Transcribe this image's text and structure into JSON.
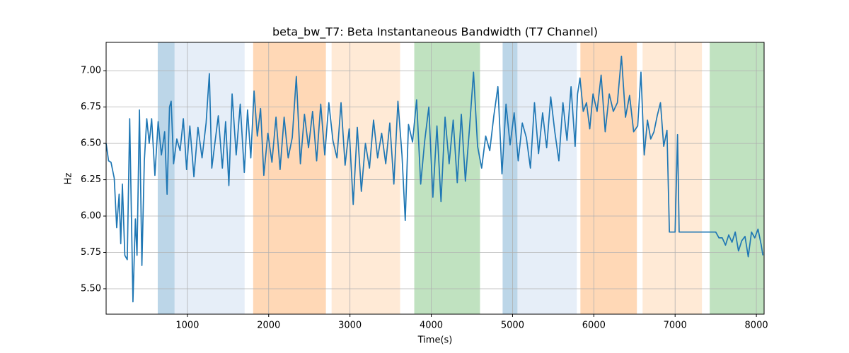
{
  "chart_data": {
    "type": "line",
    "title": "beta_bw_T7: Beta Instantaneous Bandwidth (T7 Channel)",
    "xlabel": "Time(s)",
    "ylabel": "Hz",
    "color": "#1f77b4",
    "grid": true,
    "xlim": [
      0,
      8095
    ],
    "ylim": [
      5.325,
      7.195
    ],
    "xticks": [
      1000,
      2000,
      3000,
      4000,
      5000,
      6000,
      7000,
      8000
    ],
    "yticks": [
      {
        "value": 5.5,
        "label": "5.50"
      },
      {
        "value": 5.75,
        "label": "5.75"
      },
      {
        "value": 6.0,
        "label": "6.00"
      },
      {
        "value": 6.25,
        "label": "6.25"
      },
      {
        "value": 6.5,
        "label": "6.50"
      },
      {
        "value": 6.75,
        "label": "6.75"
      },
      {
        "value": 7.0,
        "label": "7.00"
      }
    ],
    "spans": [
      {
        "start": 635,
        "end": 843,
        "color": "#bcd6e8"
      },
      {
        "start": 843,
        "end": 1704,
        "color": "#e6eef8"
      },
      {
        "start": 1809,
        "end": 2704,
        "color": "#ffd8b6"
      },
      {
        "start": 2774,
        "end": 3617,
        "color": "#ffead6"
      },
      {
        "start": 3791,
        "end": 4600,
        "color": "#c0e2c0"
      },
      {
        "start": 4878,
        "end": 5061,
        "color": "#bcd6e8"
      },
      {
        "start": 5061,
        "end": 5791,
        "color": "#e6eef8"
      },
      {
        "start": 5835,
        "end": 6530,
        "color": "#ffd8b6"
      },
      {
        "start": 6600,
        "end": 7330,
        "color": "#ffead6"
      },
      {
        "start": 7426,
        "end": 8095,
        "color": "#c0e2c0"
      }
    ],
    "x": [
      0,
      30,
      60,
      100,
      130,
      160,
      180,
      200,
      230,
      260,
      290,
      330,
      360,
      380,
      410,
      440,
      470,
      500,
      530,
      560,
      600,
      640,
      680,
      720,
      750,
      780,
      800,
      830,
      870,
      910,
      950,
      990,
      1030,
      1080,
      1130,
      1180,
      1230,
      1270,
      1300,
      1340,
      1380,
      1430,
      1470,
      1510,
      1550,
      1600,
      1650,
      1700,
      1740,
      1780,
      1820,
      1860,
      1900,
      1940,
      1990,
      2040,
      2090,
      2140,
      2190,
      2240,
      2290,
      2340,
      2390,
      2440,
      2490,
      2540,
      2590,
      2640,
      2690,
      2740,
      2790,
      2840,
      2890,
      2940,
      2990,
      3040,
      3090,
      3140,
      3190,
      3240,
      3290,
      3340,
      3390,
      3440,
      3490,
      3540,
      3590,
      3640,
      3680,
      3720,
      3770,
      3820,
      3870,
      3920,
      3970,
      4020,
      4070,
      4120,
      4170,
      4220,
      4270,
      4320,
      4370,
      4420,
      4470,
      4520,
      4570,
      4620,
      4670,
      4720,
      4770,
      4820,
      4870,
      4920,
      4970,
      5020,
      5070,
      5120,
      5170,
      5220,
      5270,
      5320,
      5370,
      5420,
      5470,
      5520,
      5570,
      5620,
      5670,
      5720,
      5770,
      5800,
      5830,
      5870,
      5910,
      5950,
      5990,
      6040,
      6090,
      6140,
      6190,
      6240,
      6290,
      6340,
      6390,
      6440,
      6490,
      6540,
      6580,
      6620,
      6660,
      6700,
      6740,
      6780,
      6820,
      6860,
      6900,
      6930,
      6960,
      7000,
      7030,
      7050,
      7100,
      7200,
      7300,
      7400,
      7500,
      7540,
      7580,
      7620,
      7660,
      7700,
      7740,
      7780,
      7820,
      7860,
      7900,
      7940,
      7980,
      8020,
      8060,
      8080
    ],
    "values": [
      6.5,
      6.38,
      6.37,
      6.26,
      5.92,
      6.15,
      5.81,
      6.22,
      5.73,
      5.7,
      6.67,
      5.41,
      5.98,
      5.73,
      6.73,
      5.66,
      6.38,
      6.67,
      6.5,
      6.67,
      6.28,
      6.65,
      6.42,
      6.58,
      6.15,
      6.75,
      6.79,
      6.36,
      6.53,
      6.45,
      6.67,
      6.32,
      6.62,
      6.27,
      6.61,
      6.4,
      6.64,
      6.98,
      6.33,
      6.51,
      6.69,
      6.33,
      6.65,
      6.21,
      6.84,
      6.42,
      6.77,
      6.3,
      6.73,
      6.4,
      6.86,
      6.55,
      6.74,
      6.28,
      6.57,
      6.37,
      6.68,
      6.32,
      6.68,
      6.4,
      6.54,
      6.96,
      6.36,
      6.7,
      6.47,
      6.72,
      6.38,
      6.77,
      6.42,
      6.78,
      6.52,
      6.4,
      6.78,
      6.35,
      6.6,
      6.08,
      6.61,
      6.17,
      6.5,
      6.33,
      6.66,
      6.4,
      6.57,
      6.36,
      6.64,
      6.22,
      6.79,
      6.42,
      5.97,
      6.63,
      6.51,
      6.8,
      6.22,
      6.52,
      6.75,
      6.13,
      6.62,
      6.1,
      6.68,
      6.36,
      6.66,
      6.23,
      6.7,
      6.24,
      6.6,
      6.99,
      6.48,
      6.33,
      6.55,
      6.45,
      6.69,
      6.89,
      6.29,
      6.77,
      6.49,
      6.71,
      6.38,
      6.64,
      6.54,
      6.33,
      6.78,
      6.43,
      6.71,
      6.47,
      6.82,
      6.58,
      6.38,
      6.78,
      6.52,
      6.89,
      6.48,
      6.84,
      6.95,
      6.72,
      6.78,
      6.6,
      6.84,
      6.72,
      6.97,
      6.58,
      6.84,
      6.72,
      6.78,
      7.1,
      6.68,
      6.83,
      6.58,
      6.62,
      6.99,
      6.42,
      6.66,
      6.53,
      6.58,
      6.69,
      6.78,
      6.48,
      6.59,
      5.89,
      5.89,
      5.89,
      6.56,
      5.89,
      5.89,
      5.89,
      5.89,
      5.89,
      5.89,
      5.85,
      5.85,
      5.8,
      5.87,
      5.82,
      5.89,
      5.76,
      5.83,
      5.86,
      5.72,
      5.89,
      5.85,
      5.91,
      5.8,
      5.73
    ]
  }
}
